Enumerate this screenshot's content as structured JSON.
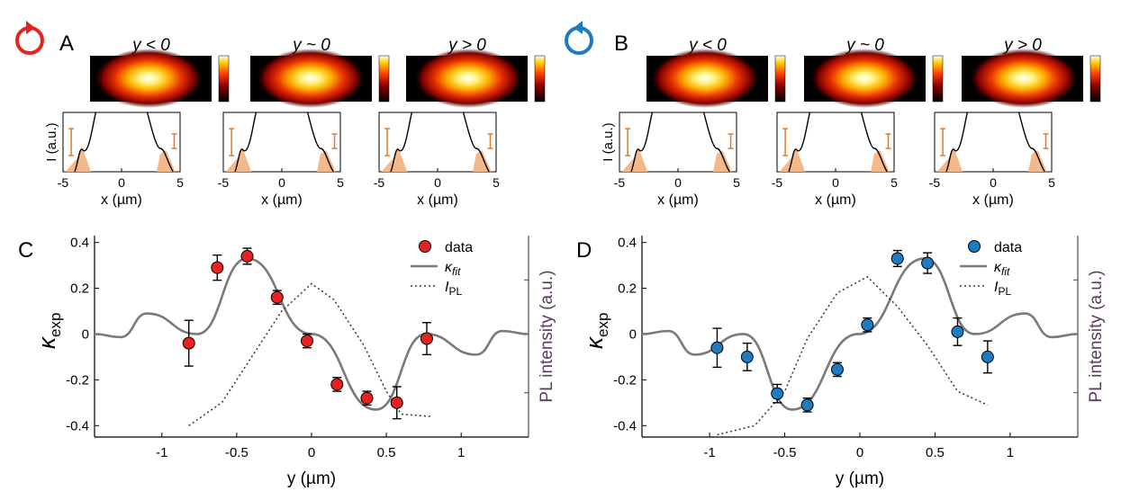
{
  "panel_labels": {
    "a": "A",
    "b": "B",
    "c": "C",
    "d": "D"
  },
  "colors": {
    "ccw": "#e8231f",
    "cw": "#1f7bc0",
    "fit": "#7a7a7a",
    "right_axis": "#5a3d5e",
    "shade": "#f3b98a",
    "errbar": "#e07b2a"
  },
  "maps": {
    "titles": [
      "y < 0",
      "y ~ 0",
      "y > 0"
    ],
    "ylabel": "I (a.u.)",
    "xlabel": "x (µm)",
    "xticks": [
      "-5",
      "0",
      "5"
    ]
  },
  "chart_data": [
    {
      "panel": "C",
      "type": "scatter",
      "x": [
        -0.82,
        -0.63,
        -0.43,
        -0.23,
        -0.03,
        0.17,
        0.37,
        0.57,
        0.77
      ],
      "y": [
        -0.04,
        0.29,
        0.34,
        0.16,
        -0.03,
        -0.22,
        -0.28,
        -0.3,
        -0.02
      ],
      "err": [
        0.1,
        0.055,
        0.035,
        0.03,
        0.03,
        0.03,
        0.03,
        0.07,
        0.07
      ],
      "fit_peaks": [
        {
          "y": -1.1,
          "k": 0.09
        },
        {
          "y": -0.43,
          "k": 0.33
        },
        {
          "y": 0.43,
          "k": -0.33
        },
        {
          "y": 1.1,
          "k": -0.09
        }
      ],
      "ipl": [
        [
          -0.82,
          -0.4
        ],
        [
          -0.6,
          -0.3
        ],
        [
          -0.35,
          -0.05
        ],
        [
          -0.2,
          0.1
        ],
        [
          0.0,
          0.22
        ],
        [
          0.15,
          0.15
        ],
        [
          0.35,
          -0.05
        ],
        [
          0.5,
          -0.25
        ],
        [
          0.6,
          -0.35
        ],
        [
          0.8,
          -0.36
        ]
      ],
      "xlabel": "y (µm)",
      "ylabel": "κexp",
      "ylabel_main": "κ",
      "ylabel_sub": "exp",
      "right_label": "PL intensity (a.u.)",
      "xlim": [
        -1.45,
        1.45
      ],
      "ylim": [
        -0.45,
        0.43
      ],
      "xticks": [
        "-1",
        "-0.5",
        "0",
        "0.5",
        "1"
      ],
      "yticks": [
        "0.4",
        "0.2",
        "0",
        "-0.2",
        "-0.4"
      ],
      "legend": {
        "data": "data",
        "fit_main": "κ",
        "fit_sub": "fit",
        "pl_main": "I",
        "pl_sub": "PL"
      }
    },
    {
      "panel": "D",
      "type": "scatter",
      "x": [
        -0.95,
        -0.75,
        -0.55,
        -0.35,
        -0.15,
        0.05,
        0.25,
        0.45,
        0.65,
        0.85
      ],
      "y": [
        -0.06,
        -0.1,
        -0.26,
        -0.31,
        -0.155,
        0.04,
        0.33,
        0.31,
        0.01,
        -0.1
      ],
      "err": [
        0.085,
        0.06,
        0.04,
        0.03,
        0.03,
        0.03,
        0.035,
        0.045,
        0.06,
        0.07
      ],
      "fit_peaks": [
        {
          "y": -1.1,
          "k": -0.09
        },
        {
          "y": -0.45,
          "k": -0.33
        },
        {
          "y": 0.43,
          "k": 0.33
        },
        {
          "y": 1.1,
          "k": 0.09
        }
      ],
      "ipl": [
        [
          -0.95,
          -0.44
        ],
        [
          -0.7,
          -0.4
        ],
        [
          -0.5,
          -0.25
        ],
        [
          -0.35,
          -0.02
        ],
        [
          -0.15,
          0.18
        ],
        [
          0.05,
          0.25
        ],
        [
          0.25,
          0.12
        ],
        [
          0.45,
          -0.05
        ],
        [
          0.65,
          -0.25
        ],
        [
          0.85,
          -0.31
        ]
      ],
      "xlabel": "y (µm)",
      "ylabel": "κexp",
      "ylabel_main": "κ",
      "ylabel_sub": "exp",
      "right_label": "PL intensity (a.u.)",
      "xlim": [
        -1.45,
        1.45
      ],
      "ylim": [
        -0.45,
        0.43
      ],
      "xticks": [
        "-1",
        "-0.5",
        "0",
        "0.5",
        "1"
      ],
      "yticks": [
        "0.4",
        "0.2",
        "0",
        "-0.2",
        "-0.4"
      ],
      "legend": {
        "data": "data",
        "fit_main": "κ",
        "fit_sub": "fit",
        "pl_main": "I",
        "pl_sub": "PL"
      }
    }
  ]
}
